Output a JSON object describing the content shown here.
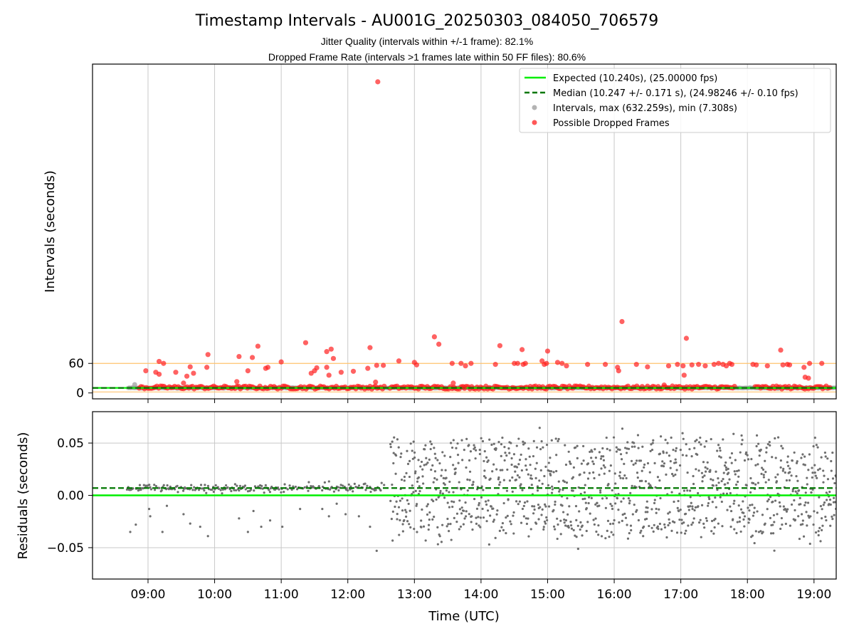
{
  "figure": {
    "title": "Timestamp Intervals - AU001G_20250303_084050_706579",
    "subtitle_1": "Jitter Quality (intervals within +/-1 frame): 82.1%",
    "subtitle_2": "Dropped Frame Rate (intervals >1 frames late within 50 FF files): 80.6%",
    "xlabel": "Time (UTC)"
  },
  "colors": {
    "expected": "#00ee00",
    "median": "#007700",
    "intervals": "#999999",
    "dropped": "#ff1f1f",
    "threshold": "#ffc36e",
    "grid": "#c8c8c8",
    "residuals": "#6e6e6e"
  },
  "chart_data": [
    {
      "type": "scatter",
      "ylabel": "Intervals (seconds)",
      "xlim": [
        "08:10",
        "19:20"
      ],
      "ylim": [
        -12,
        668
      ],
      "xticks": [
        "09:00",
        "10:00",
        "11:00",
        "12:00",
        "13:00",
        "14:00",
        "15:00",
        "16:00",
        "17:00",
        "18:00",
        "19:00"
      ],
      "yticks": [
        0,
        60
      ],
      "grid": "vertical",
      "legend_position": "upper right",
      "legend": [
        "Expected (10.240s), (25.00000 fps)",
        "Median (10.247 +/- 0.171 s), (24.98246 +/- 0.10 fps)",
        "Intervals, max (632.259s), min (7.308s)",
        "Possible Dropped Frames"
      ],
      "expected_interval": 10.24,
      "median_interval": 10.247,
      "threshold_lines": [
        2,
        60
      ],
      "baseline_segments": [
        [
          "08:42",
          "09:00"
        ],
        [
          "09:00",
          "10:45"
        ],
        [
          "10:45",
          "12:40"
        ],
        [
          "12:40",
          "19:20"
        ]
      ],
      "dropped_frames": {
        "t": [
          "12:27",
          "16:07",
          "17:05",
          "13:18",
          "11:22",
          "14:17",
          "13:22",
          "11:45",
          "10:39",
          "14:37",
          "12:20",
          "15:00",
          "09:54",
          "11:41",
          "10:22",
          "18:30",
          "11:47",
          "10:34",
          "09:10",
          "11:00",
          "09:38",
          "09:53",
          "10:48",
          "11:32",
          "11:41",
          "10:46",
          "12:18",
          "12:05",
          "12:26",
          "12:32",
          "11:54",
          "10:30",
          "11:43",
          "09:41",
          "11:27",
          "09:35",
          "09:14",
          "09:07",
          "09:25",
          "09:10",
          "11:30",
          "10:20",
          "09:32",
          "08:58",
          "12:25",
          "13:00",
          "13:02",
          "13:34",
          "13:42",
          "13:46",
          "13:51",
          "14:13",
          "14:30",
          "14:33",
          "14:38",
          "14:40",
          "14:55",
          "14:57",
          "14:59",
          "15:09",
          "15:13",
          "15:17",
          "15:36",
          "15:52",
          "16:03",
          "16:20",
          "16:30",
          "16:49",
          "16:57",
          "17:02",
          "17:10",
          "17:16",
          "17:22",
          "17:30",
          "17:34",
          "17:38",
          "17:41",
          "17:44",
          "17:46",
          "18:05",
          "18:08",
          "18:18",
          "18:32",
          "18:36",
          "18:38",
          "18:51",
          "18:56",
          "19:07",
          "17:03",
          "18:52",
          "18:55",
          "12:46",
          "13:35",
          "13:45",
          "16:04",
          "16:45"
        ],
        "y": [
          632,
          145,
          111,
          114,
          102,
          96,
          99,
          89,
          95,
          88,
          92,
          85,
          78,
          84,
          74,
          87,
          70,
          72,
          64,
          63,
          53,
          52,
          52,
          51,
          52,
          50,
          50,
          44,
          56,
          56,
          42,
          45,
          36,
          40,
          40,
          34,
          60,
          42,
          42,
          38,
          45,
          23,
          20,
          45,
          22,
          62,
          57,
          60,
          60,
          55,
          60,
          58,
          60,
          60,
          58,
          60,
          65,
          58,
          60,
          62,
          60,
          55,
          58,
          58,
          52,
          58,
          53,
          55,
          58,
          55,
          57,
          58,
          55,
          58,
          60,
          58,
          55,
          60,
          58,
          58,
          57,
          55,
          57,
          58,
          57,
          52,
          60,
          60,
          36,
          32,
          30,
          65,
          20,
          12,
          45,
          16
        ]
      },
      "dense_band": {
        "segments": [
          [
            "08:52",
            "12:33"
          ],
          [
            "12:38",
            "17:50"
          ],
          [
            "18:07",
            "19:15"
          ]
        ],
        "y_range": [
          8,
          14
        ]
      }
    },
    {
      "type": "scatter",
      "ylabel": "Residuals (seconds)",
      "xlim": [
        "08:10",
        "19:20"
      ],
      "ylim": [
        -0.08,
        0.08
      ],
      "xticks": [
        "09:00",
        "10:00",
        "11:00",
        "12:00",
        "13:00",
        "14:00",
        "15:00",
        "16:00",
        "17:00",
        "18:00",
        "19:00"
      ],
      "yticks": [
        "−0.05",
        "0.00",
        "0.05"
      ],
      "grid": "both",
      "expected_residual": 0.0,
      "median_residual": 0.007,
      "phases": [
        {
          "start": "08:40",
          "end": "12:33",
          "center": 0.007,
          "spread": 0.002
        },
        {
          "start": "12:38",
          "end": "19:20",
          "center": 0.007,
          "spread": 0.045
        }
      ],
      "outliers": {
        "t": [
          "08:44",
          "08:49",
          "09:01",
          "09:02",
          "09:13",
          "09:17",
          "09:32",
          "09:38",
          "09:47",
          "09:54",
          "10:22",
          "10:30",
          "10:35",
          "10:42",
          "10:50",
          "11:01",
          "11:17",
          "11:37",
          "11:43",
          "11:50",
          "11:58",
          "12:10",
          "12:20",
          "12:26"
        ],
        "y": [
          -0.035,
          -0.028,
          -0.013,
          -0.02,
          -0.035,
          -0.01,
          -0.018,
          -0.027,
          -0.03,
          -0.039,
          -0.022,
          -0.035,
          -0.015,
          -0.03,
          -0.024,
          -0.03,
          -0.013,
          -0.013,
          -0.02,
          -0.008,
          -0.018,
          -0.02,
          -0.03,
          -0.053
        ]
      }
    }
  ]
}
